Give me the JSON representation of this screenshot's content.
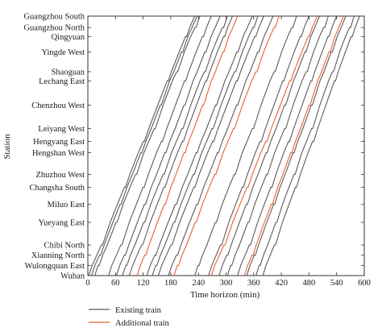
{
  "chart_data": {
    "type": "line",
    "xlabel": "Time horizon (min)",
    "ylabel": "Station",
    "xlim": [
      0,
      600
    ],
    "x_ticks": [
      0,
      60,
      120,
      180,
      240,
      300,
      360,
      420,
      480,
      540,
      600
    ],
    "x_tick_labels": [
      "0",
      "60",
      "120",
      "180",
      "240",
      "300",
      "360",
      "420",
      "480",
      "540",
      "600"
    ],
    "y_axis": "cumulative distance from Wuhan (km), top = Guangzhou South",
    "stations": [
      {
        "name": "Guangzhou South",
        "km": 1069
      },
      {
        "name": "Guangzhou North",
        "km": 1022
      },
      {
        "name": "Qingyuan",
        "km": 985
      },
      {
        "name": "Yingde West",
        "km": 921
      },
      {
        "name": "Shaoguan",
        "km": 840
      },
      {
        "name": "Lechang East",
        "km": 802
      },
      {
        "name": "Chenzhou West",
        "km": 702
      },
      {
        "name": "Leiyang West",
        "km": 606
      },
      {
        "name": "Hengyang East",
        "km": 553
      },
      {
        "name": "Hengshan West",
        "km": 506
      },
      {
        "name": "Zhuzhou West",
        "km": 417
      },
      {
        "name": "Changsha South",
        "km": 364
      },
      {
        "name": "Miluo East",
        "km": 293
      },
      {
        "name": "Yueyang East",
        "km": 219
      },
      {
        "name": "Chibi North",
        "km": 126
      },
      {
        "name": "Xianning North",
        "km": 84
      },
      {
        "name": "Wulongquan East",
        "km": 42
      },
      {
        "name": "Wuhan",
        "km": 0
      }
    ],
    "series": [
      {
        "name": "Existing train",
        "color": "#5a5a5a"
      },
      {
        "name": "Additional train",
        "color": "#e8602a"
      }
    ],
    "trains": [
      {
        "series": 0,
        "depart": 2,
        "arrive": 232
      },
      {
        "series": 0,
        "depart": 8,
        "arrive": 237
      },
      {
        "series": 0,
        "depart": 15,
        "arrive": 243
      },
      {
        "series": 0,
        "depart": 45,
        "arrive": 268
      },
      {
        "series": 0,
        "depart": 62,
        "arrive": 287
      },
      {
        "series": 0,
        "depart": 75,
        "arrive": 303
      },
      {
        "series": 0,
        "depart": 90,
        "arrive": 314
      },
      {
        "series": 0,
        "depart": 128,
        "arrive": 357
      },
      {
        "series": 0,
        "depart": 140,
        "arrive": 369
      },
      {
        "series": 0,
        "depart": 153,
        "arrive": 382
      },
      {
        "series": 0,
        "depart": 175,
        "arrive": 402
      },
      {
        "series": 0,
        "depart": 232,
        "arrive": 453
      },
      {
        "series": 0,
        "depart": 262,
        "arrive": 480
      },
      {
        "series": 0,
        "depart": 285,
        "arrive": 503
      },
      {
        "series": 0,
        "depart": 303,
        "arrive": 522
      },
      {
        "series": 0,
        "depart": 325,
        "arrive": 540
      },
      {
        "series": 0,
        "depart": 345,
        "arrive": 560
      },
      {
        "series": 0,
        "depart": 365,
        "arrive": 578
      },
      {
        "series": 0,
        "depart": 380,
        "arrive": 590
      },
      {
        "series": 1,
        "depart": 107,
        "arrive": 325
      },
      {
        "series": 1,
        "depart": 187,
        "arrive": 415
      },
      {
        "series": 1,
        "depart": 268,
        "arrive": 498
      },
      {
        "series": 1,
        "depart": 340,
        "arrive": 555
      }
    ],
    "grid": false,
    "legend": "bottom-left"
  }
}
